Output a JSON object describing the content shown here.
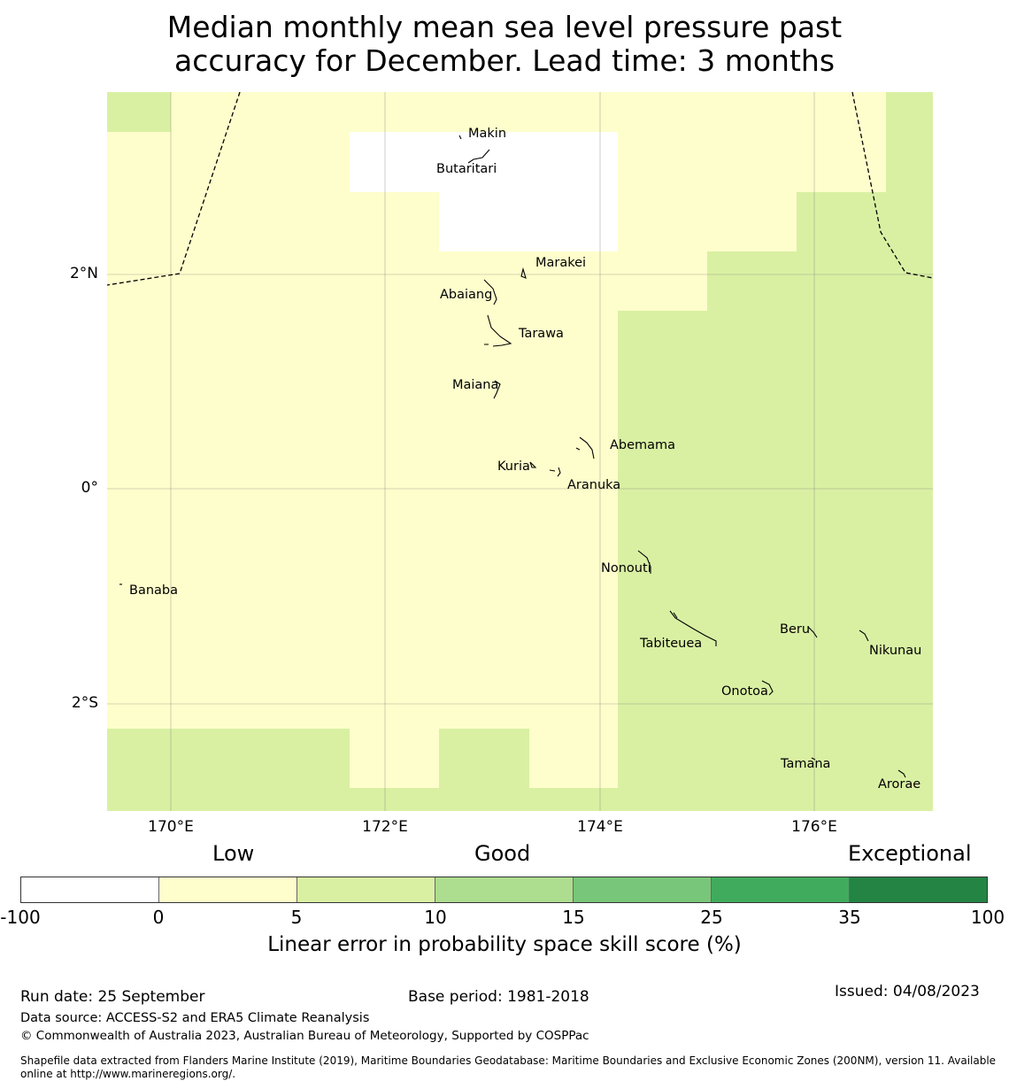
{
  "title": {
    "line1": "Median monthly mean sea level pressure past",
    "line2": "accuracy for December. Lead time: 3 months"
  },
  "map": {
    "lat_ticks": [
      "2°N",
      "0°",
      "2°S"
    ],
    "lon_ticks": [
      "170°E",
      "172°E",
      "174°E",
      "176°E"
    ],
    "islands": [
      {
        "name": "Makin"
      },
      {
        "name": "Butaritari"
      },
      {
        "name": "Marakei"
      },
      {
        "name": "Abaiang"
      },
      {
        "name": "Tarawa"
      },
      {
        "name": "Maiana"
      },
      {
        "name": "Abemama"
      },
      {
        "name": "Kuria"
      },
      {
        "name": "Aranuka"
      },
      {
        "name": "Banaba"
      },
      {
        "name": "Nonouti"
      },
      {
        "name": "Tabiteuea"
      },
      {
        "name": "Beru"
      },
      {
        "name": "Nikunau"
      },
      {
        "name": "Onotoa"
      },
      {
        "name": "Tamana"
      },
      {
        "name": "Arorae"
      }
    ]
  },
  "colorbar": {
    "categories": [
      "Low",
      "Good",
      "Exceptional"
    ],
    "ticks": [
      "-100",
      "0",
      "5",
      "10",
      "15",
      "25",
      "35",
      "100"
    ],
    "colors": [
      "#ffffff",
      "#fefecc",
      "#d9f0a3",
      "#addd8e",
      "#78c679",
      "#41ab5d",
      "#238443"
    ],
    "label": "Linear error in probability space skill score (%)"
  },
  "footer": {
    "run_date": "Run date: 25 September",
    "base_period": "Base period: 1981-2018",
    "issued": "Issued: 04/08/2023",
    "data_source": "Data source: ACCESS-S2 and ERA5 Climate Reanalysis",
    "copyright": "© Commonwealth of Australia 2023, Australian Bureau of Meteorology, Supported by COSPPac",
    "shapefile": "Shapefile data extracted from Flanders Marine Institute (2019), Maritime Boundaries Geodatabase: Maritime Boundaries and Exclusive Economic Zones (200NM), version 11. Available online at http://www.marineregions.org/."
  }
}
